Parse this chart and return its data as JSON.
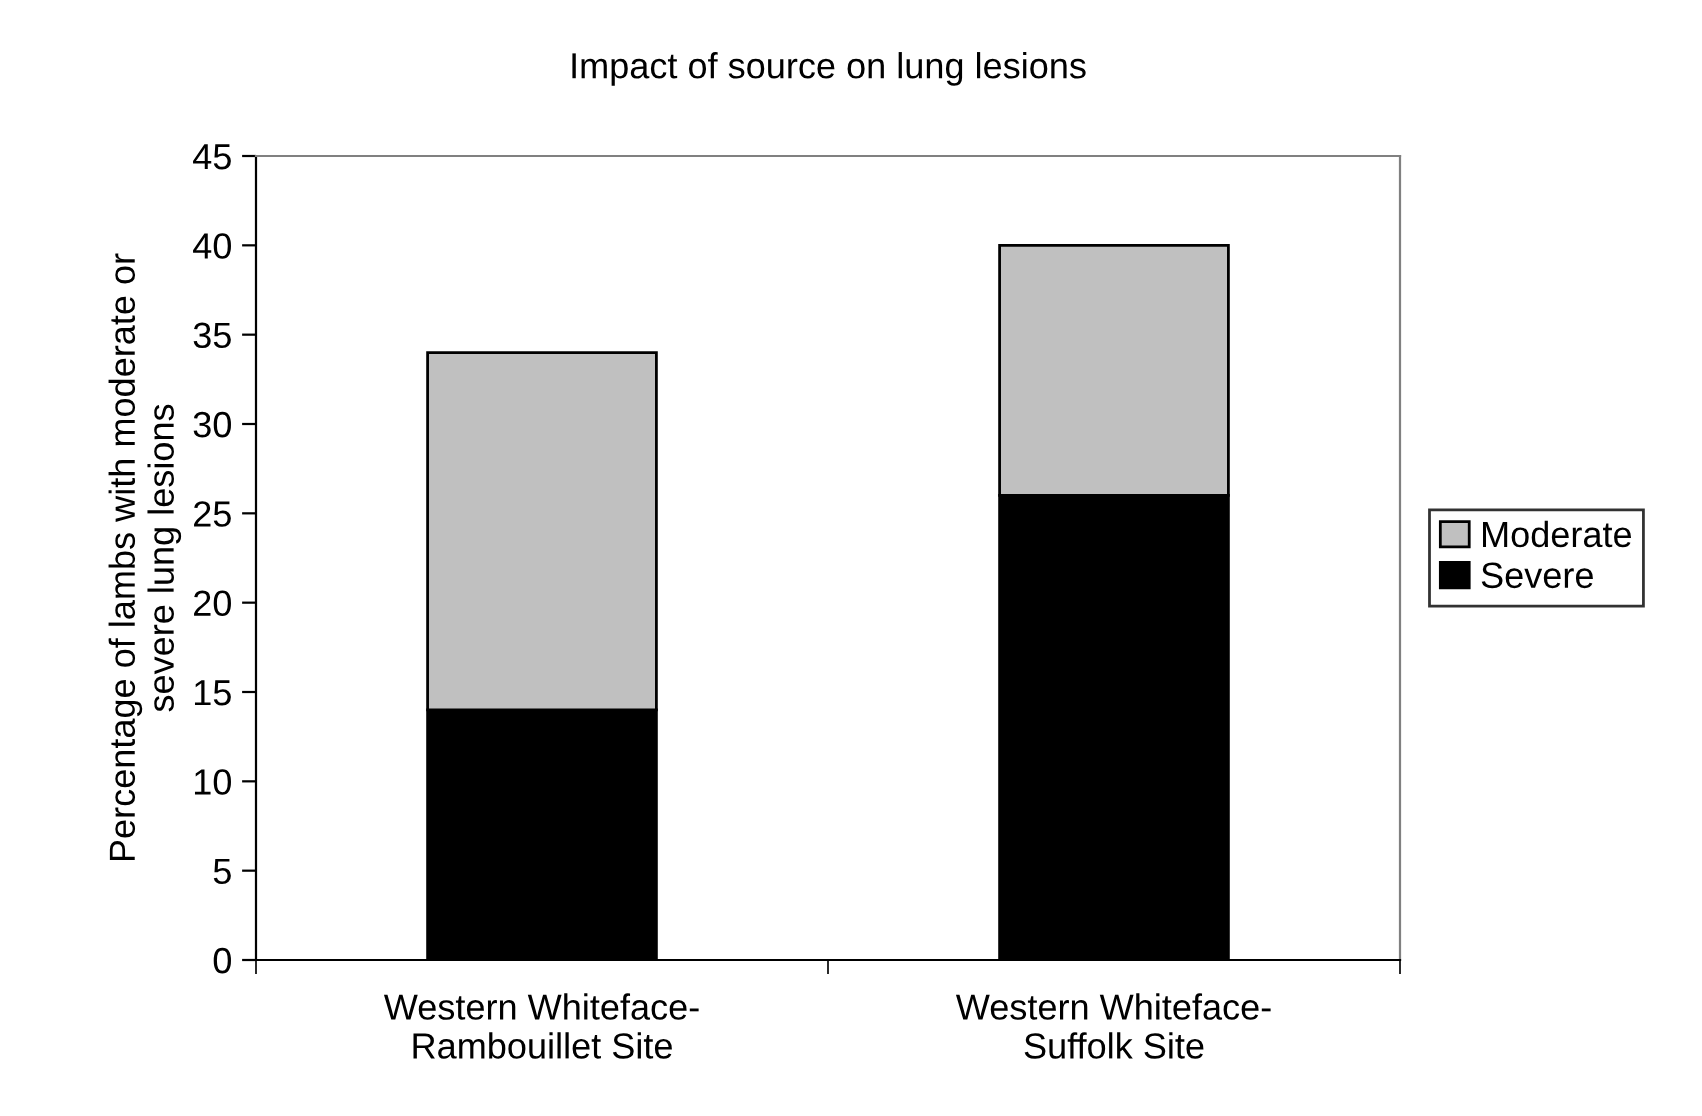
{
  "chart_data": {
    "type": "bar",
    "title": "Impact of source on lung lesions",
    "ylabel": "Percentage of lambs with moderate or\nsevere lung lesions",
    "categories": [
      "Western Whiteface-\nRambouillet Site",
      "Western Whiteface-\nSuffolk Site"
    ],
    "stacked": true,
    "series": [
      {
        "name": "Severe",
        "color": "#000000",
        "values": [
          14,
          26
        ]
      },
      {
        "name": "Moderate",
        "color": "#c0c0c0",
        "values": [
          20,
          14
        ]
      }
    ],
    "ylim": [
      0,
      45
    ],
    "yticks": [
      0,
      5,
      10,
      15,
      20,
      25,
      30,
      35,
      40,
      45
    ],
    "grid": false,
    "legend": "right"
  }
}
